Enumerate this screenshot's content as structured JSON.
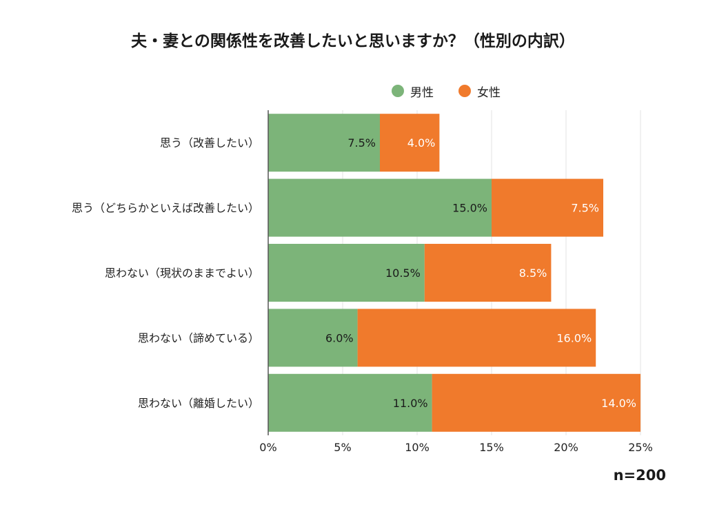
{
  "chart_data": {
    "type": "bar",
    "orientation": "horizontal",
    "stacked": true,
    "title": "夫・妻との関係性を改善したいと思いますか？（性別の内訳）",
    "categories": [
      "思う（改善したい）",
      "思う（どちらかといえば改善したい）",
      "思わない（現状のままでよい）",
      "思わない（諦めている）",
      "思わない（離婚したい）"
    ],
    "series": [
      {
        "name": "男性",
        "values": [
          7.5,
          15.0,
          10.5,
          6.0,
          11.0
        ],
        "labels": [
          "7.5%",
          "15.0%",
          "10.5%",
          "6.0%",
          "11.0%"
        ]
      },
      {
        "name": "女性",
        "values": [
          4.0,
          7.5,
          8.5,
          16.0,
          14.0
        ],
        "labels": [
          "4.0%",
          "7.5%",
          "8.5%",
          "16.0%",
          "14.0%"
        ]
      }
    ],
    "xlim": [
      0,
      25
    ],
    "xticks": [
      "0%",
      "5%",
      "10%",
      "15%",
      "20%",
      "25%"
    ],
    "grid": true,
    "legend_position": "top-right",
    "colors": {
      "male": "#7cb479",
      "female": "#f07a2c",
      "grid": "#e3e3e3",
      "axis": "#555555"
    },
    "sample_size": "n=200"
  }
}
